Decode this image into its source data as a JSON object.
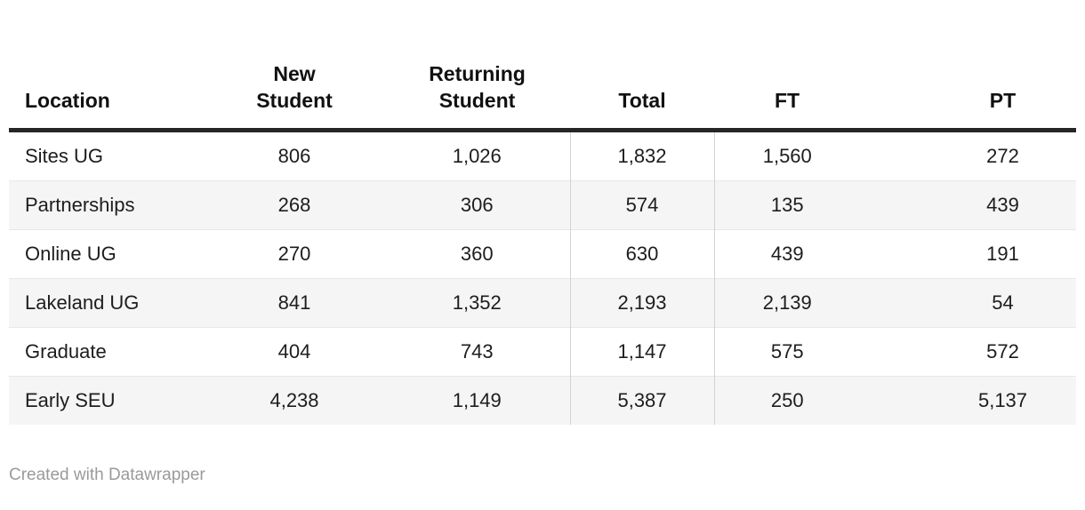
{
  "chart_data": {
    "type": "table",
    "columns": [
      {
        "label": "Location",
        "align": "left"
      },
      {
        "label": "New\nStudent",
        "align": "center"
      },
      {
        "label": "Returning\nStudent",
        "align": "center"
      },
      {
        "label": "Total",
        "align": "center"
      },
      {
        "label": "FT",
        "align": "center"
      },
      {
        "label": "PT",
        "align": "center"
      }
    ],
    "rows": [
      {
        "cells": [
          "Sites UG",
          "806",
          "1,026",
          "1,832",
          "1,560",
          "272"
        ]
      },
      {
        "cells": [
          "Partnerships",
          "268",
          "306",
          "574",
          "135",
          "439"
        ]
      },
      {
        "cells": [
          "Online UG",
          "270",
          "360",
          "630",
          "439",
          "191"
        ]
      },
      {
        "cells": [
          "Lakeland UG",
          "841",
          "1,352",
          "2,193",
          "2,139",
          "54"
        ]
      },
      {
        "cells": [
          "Graduate",
          "404",
          "743",
          "1,147",
          "575",
          "572"
        ]
      },
      {
        "cells": [
          "Early SEU",
          "4,238",
          "1,149",
          "5,387",
          "250",
          "5,137"
        ]
      }
    ],
    "layout_hints": {
      "striped_rows": true,
      "vertical_dividers_before": [
        "Total",
        "FT"
      ],
      "header_rule": true
    }
  },
  "footer": {
    "attribution": "Created with Datawrapper"
  },
  "colors": {
    "text": "#1d1d1d",
    "header_text": "#111111",
    "stripe": "#f5f5f5",
    "header_rule": "#262626",
    "column_divider": "#d2d2d2",
    "row_border": "#e8e8e8",
    "muted_text": "#9a9a9a",
    "background": "#ffffff"
  }
}
